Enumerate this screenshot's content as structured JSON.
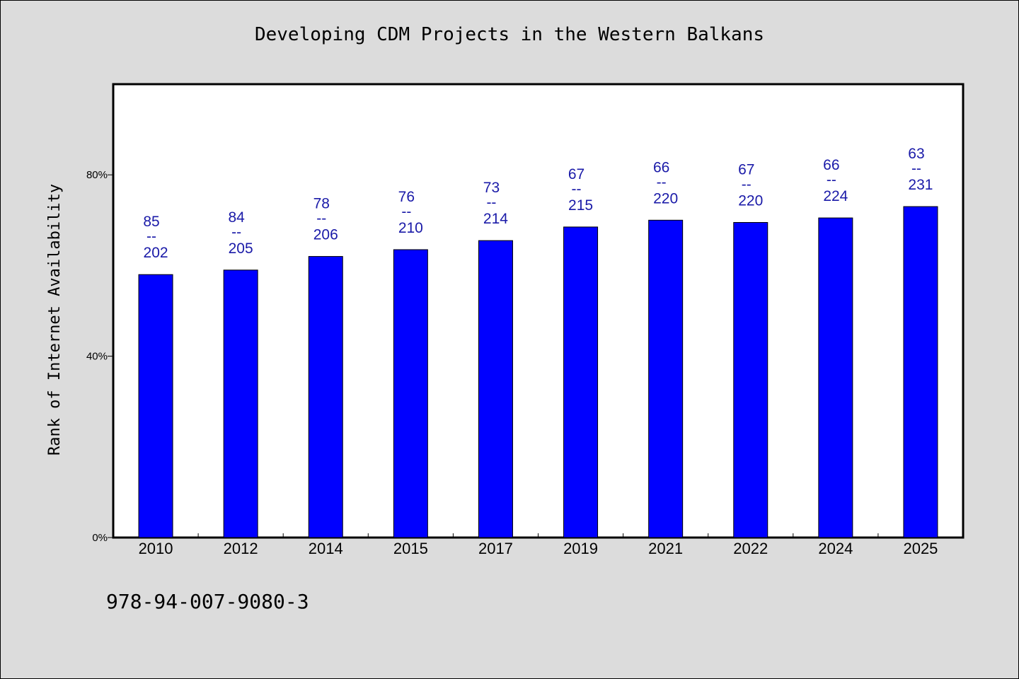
{
  "chart_data": {
    "type": "bar",
    "title": "Developing CDM Projects in the Western Balkans",
    "xlabel": "",
    "ylabel": "Rank of Internet Availability",
    "categories": [
      "2010",
      "2012",
      "2014",
      "2015",
      "2017",
      "2019",
      "2021",
      "2022",
      "2024",
      "2025"
    ],
    "values": [
      58,
      59,
      62,
      63.5,
      65.5,
      68.5,
      70,
      69.5,
      70.5,
      73
    ],
    "value_labels_top": [
      "85",
      "84",
      "78",
      "76",
      "73",
      "67",
      "66",
      "67",
      "66",
      "63"
    ],
    "value_labels_sep": "--",
    "value_labels_bottom": [
      "202",
      "205",
      "206",
      "210",
      "214",
      "215",
      "220",
      "220",
      "224",
      "231"
    ],
    "ylim": [
      0,
      100
    ],
    "yticks": [
      0,
      40,
      80
    ],
    "ytick_labels": [
      "0%",
      "40%",
      "80%"
    ],
    "grid": false,
    "bar_color": "#0000ff",
    "label_color": "#1a1aa8"
  },
  "footer": {
    "code": "978-94-007-9080-3"
  }
}
